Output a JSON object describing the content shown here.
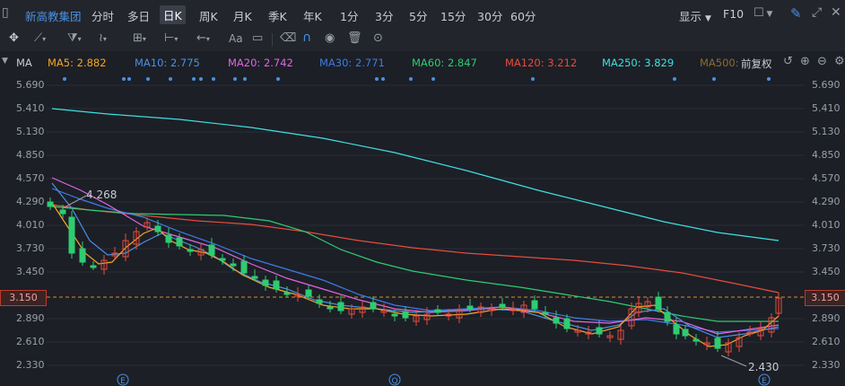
{
  "toolbar": {
    "stock_name": "新高教集团",
    "periods": [
      "分时",
      "多日",
      "日K",
      "周K",
      "月K",
      "季K",
      "年K",
      "1分",
      "3分",
      "5分",
      "15分",
      "30分",
      "60分"
    ],
    "active_period": "日K",
    "display_label": "显示",
    "f10_label": "F10",
    "font_button": "Aa"
  },
  "indicators": {
    "ma_label": "MA",
    "items": [
      {
        "label": "MA5: 2.882",
        "color": "#f5a623"
      },
      {
        "label": "MA10: 2.775",
        "color": "#4a90e2"
      },
      {
        "label": "MA20: 2.742",
        "color": "#e066e0"
      },
      {
        "label": "MA30: 2.771",
        "color": "#3d7be6"
      },
      {
        "label": "MA60: 2.847",
        "color": "#2ecc71"
      },
      {
        "label": "MA120: 3.212",
        "color": "#e74c3c"
      },
      {
        "label": "MA250: 3.829",
        "color": "#3ee0e0"
      },
      {
        "label": "MA500:",
        "color": "#8a6d2e"
      }
    ],
    "adjust_label": "前复权"
  },
  "y_axis": {
    "ticks": [
      "5.690",
      "5.410",
      "5.130",
      "4.850",
      "4.570",
      "4.290",
      "4.010",
      "3.730",
      "3.450",
      "3.150",
      "2.890",
      "2.610",
      "2.330"
    ],
    "current_price": "3.150"
  },
  "annotations": {
    "high_label": "4.268",
    "low_label": "2.430",
    "event_markers": [
      "E",
      "Q",
      "E"
    ]
  },
  "colors": {
    "up": "#e74c3c",
    "down": "#2ecc71",
    "background": "#1c1f26"
  }
}
